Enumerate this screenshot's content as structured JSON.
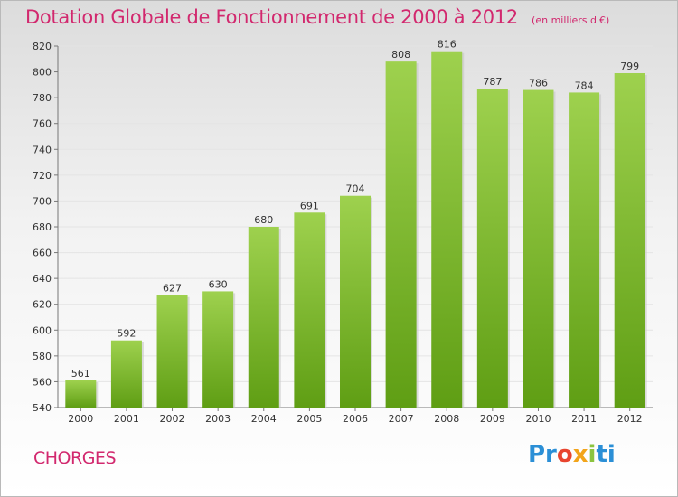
{
  "header": {
    "title": "Dotation Globale de Fonctionnement de 2000 à 2012",
    "unit": "(en milliers d'€)"
  },
  "footer": {
    "commune": "CHORGES",
    "logo_text": "Proxiti"
  },
  "colors": {
    "bar_top": "#9ed14e",
    "bar_bottom": "#5f9e14",
    "title": "#d2286e"
  },
  "chart_data": {
    "type": "bar",
    "categories": [
      "2000",
      "2001",
      "2002",
      "2003",
      "2004",
      "2005",
      "2006",
      "2007",
      "2008",
      "2009",
      "2010",
      "2011",
      "2012"
    ],
    "values": [
      561,
      592,
      627,
      630,
      680,
      691,
      704,
      808,
      816,
      787,
      786,
      784,
      799
    ],
    "data_labels": [
      "561",
      "592",
      "627",
      "630",
      "680",
      "691",
      "704",
      "808",
      "816",
      "787",
      "786",
      "784",
      "799"
    ],
    "ylim": [
      540,
      820
    ],
    "yticks": [
      540,
      560,
      580,
      600,
      620,
      640,
      660,
      680,
      700,
      720,
      740,
      760,
      780,
      800,
      820
    ],
    "grid": true,
    "legend": "none"
  }
}
